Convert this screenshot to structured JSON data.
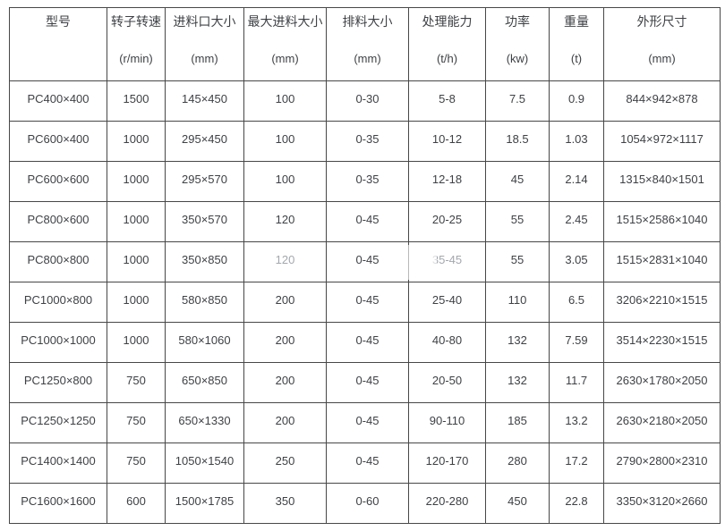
{
  "colors": {
    "background": "#ffffff",
    "border": "#474747",
    "text": "#3e4145",
    "faded_text": "#a3a8ad"
  },
  "table": {
    "columns": [
      {
        "label": "型号",
        "unit": ""
      },
      {
        "label": "转子转速",
        "unit": "(r/min)"
      },
      {
        "label": "进料口大小",
        "unit": "(mm)"
      },
      {
        "label": "最大进料大小",
        "unit": "(mm)"
      },
      {
        "label": "排料大小",
        "unit": "(mm)"
      },
      {
        "label": "处理能力",
        "unit": "(t/h)"
      },
      {
        "label": "功率",
        "unit": "(kw)"
      },
      {
        "label": "重量",
        "unit": "(t)"
      },
      {
        "label": "外形尺寸",
        "unit": "(mm)"
      }
    ],
    "rows": [
      [
        "PC400×400",
        "1500",
        "145×450",
        "100",
        "0-30",
        "5-8",
        "7.5",
        "0.9",
        "844×942×878"
      ],
      [
        "PC600×400",
        "1000",
        "295×450",
        "100",
        "0-35",
        "10-12",
        "18.5",
        "1.03",
        "1054×972×1117"
      ],
      [
        "PC600×600",
        "1000",
        "295×570",
        "100",
        "0-35",
        "12-18",
        "45",
        "2.14",
        "1315×840×1501"
      ],
      [
        "PC800×600",
        "1000",
        "350×570",
        "120",
        "0-45",
        "20-25",
        "55",
        "2.45",
        "1515×2586×1040"
      ],
      [
        "PC800×800",
        "1000",
        "350×850",
        "120",
        "0-45",
        "35-45",
        "55",
        "3.05",
        "1515×2831×1040"
      ],
      [
        "PC1000×800",
        "1000",
        "580×850",
        "200",
        "0-45",
        "25-40",
        "110",
        "6.5",
        "3206×2210×1515"
      ],
      [
        "PC1000×1000",
        "1000",
        "580×1060",
        "200",
        "0-45",
        "40-80",
        "132",
        "7.59",
        "3514×2230×1515"
      ],
      [
        "PC1250×800",
        "750",
        "650×850",
        "200",
        "0-45",
        "20-50",
        "132",
        "11.7",
        "2630×1780×2050"
      ],
      [
        "PC1250×1250",
        "750",
        "650×1330",
        "200",
        "0-45",
        "90-110",
        "185",
        "13.2",
        "2630×2180×2050"
      ],
      [
        "PC1400×1400",
        "750",
        "1050×1540",
        "250",
        "0-45",
        "120-170",
        "280",
        "17.2",
        "2790×2800×2310"
      ],
      [
        "PC1600×1600",
        "600",
        "1500×1785",
        "350",
        "0-60",
        "220-280",
        "450",
        "22.8",
        "3350×3120×2660"
      ]
    ],
    "faded_cells": [
      [
        4,
        3
      ],
      [
        4,
        5
      ]
    ]
  }
}
